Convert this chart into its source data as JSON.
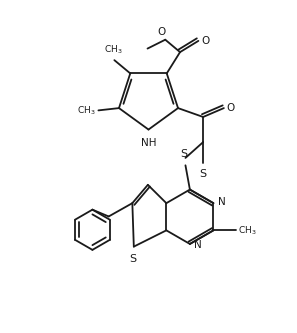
{
  "bg_color": "#ffffff",
  "line_color": "#1a1a1a",
  "line_width": 1.3,
  "figsize": [
    2.97,
    3.33
  ],
  "dpi": 100,
  "xlim": [
    0,
    10
  ],
  "ylim": [
    0,
    11.2
  ]
}
